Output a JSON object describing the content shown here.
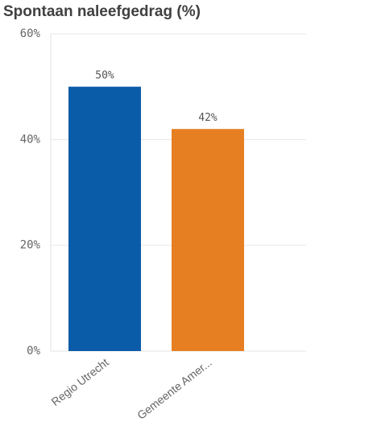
{
  "chart_data": {
    "type": "bar",
    "title": "Spontaan naleefgedrag (%)",
    "categories": [
      "Regio Utrecht",
      "Gemeente Amer..."
    ],
    "values": [
      50,
      42
    ],
    "value_labels": [
      "50%",
      "42%"
    ],
    "colors": [
      "#0b5ca8",
      "#e67e22"
    ],
    "ylim": [
      0,
      60
    ],
    "yticks": [
      {
        "value": 0,
        "label": "0%"
      },
      {
        "value": 20,
        "label": "20%"
      },
      {
        "value": 40,
        "label": "40%"
      },
      {
        "value": 60,
        "label": "60%"
      }
    ],
    "grid": true
  }
}
